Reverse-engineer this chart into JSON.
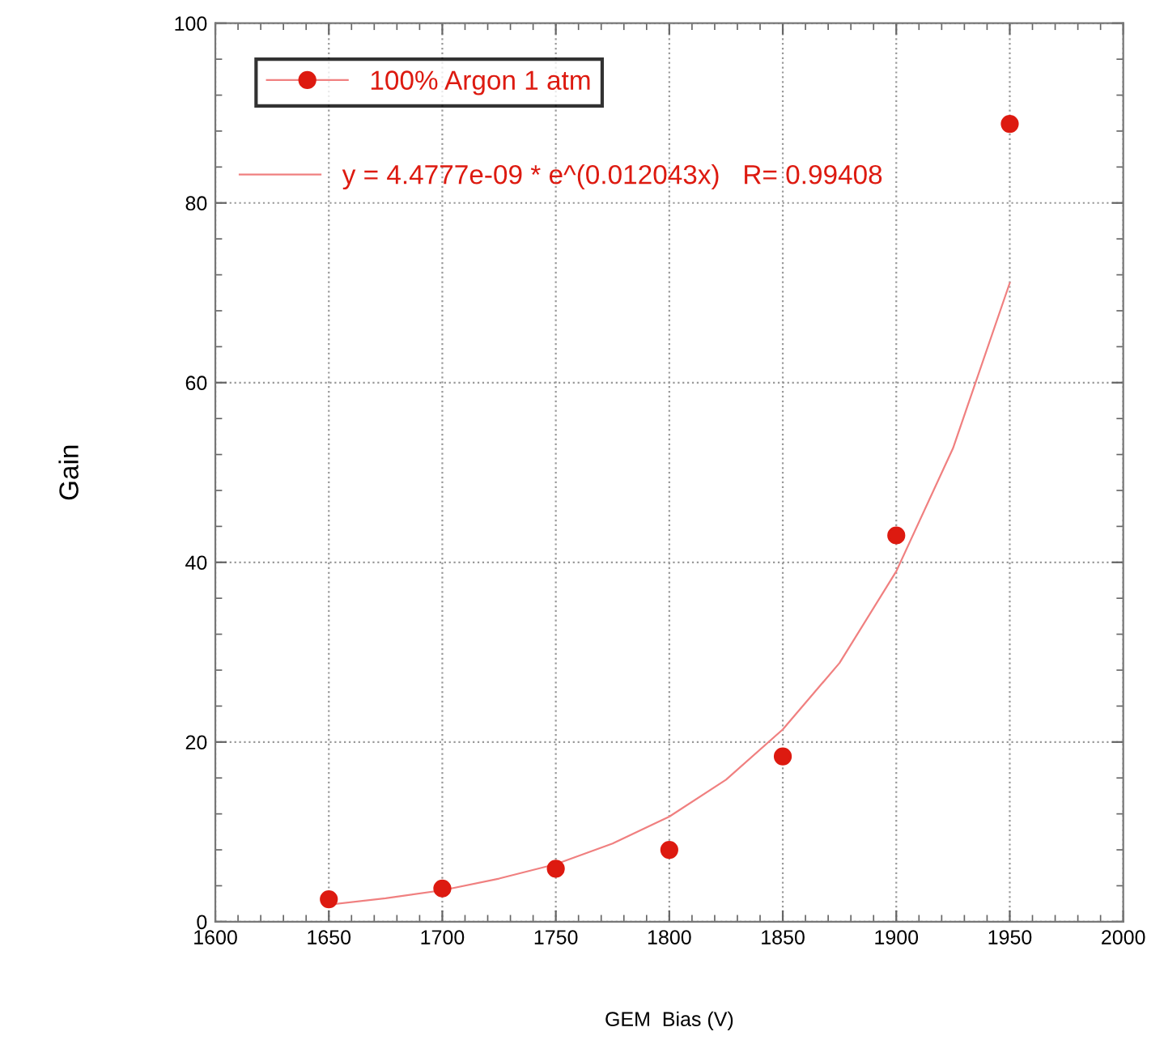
{
  "chart_data": {
    "type": "scatter",
    "xlabel": "GEM  Bias (V)",
    "ylabel": "Gain",
    "xlim": [
      1600,
      2000
    ],
    "xticks": [
      1600,
      1650,
      1700,
      1750,
      1800,
      1850,
      1900,
      1950,
      2000
    ],
    "ylim": [
      0,
      100
    ],
    "yticks": [
      0,
      20,
      40,
      60,
      80,
      100
    ],
    "grid": true,
    "legend": "top left",
    "series": [
      {
        "name": "100% Argon 1 atm",
        "marker": "circle",
        "color": "#dd1a10",
        "x": [
          1650,
          1700,
          1750,
          1800,
          1850,
          1900,
          1950
        ],
        "values": [
          2.5,
          3.7,
          5.9,
          8.0,
          18.4,
          43.0,
          88.8
        ]
      },
      {
        "name": "y = 4.4777e-09 * e^(0.012043x)   R= 0.99408",
        "type": "line",
        "marker": "none",
        "color": "#f08080",
        "x": [
          1650,
          1675,
          1700,
          1725,
          1750,
          1775,
          1800,
          1825,
          1850,
          1875,
          1900,
          1925,
          1950
        ],
        "values": [
          1.9,
          2.6,
          3.5,
          4.8,
          6.4,
          8.7,
          11.7,
          15.8,
          21.4,
          28.8,
          39.0,
          52.7,
          71.1
        ]
      }
    ]
  }
}
